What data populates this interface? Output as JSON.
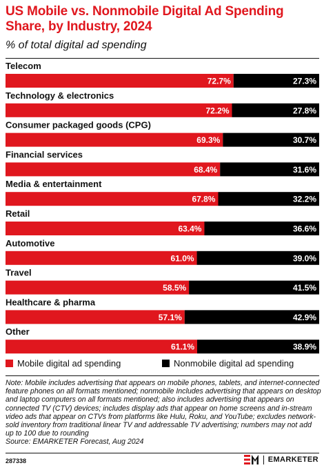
{
  "header": {
    "title": "US Mobile vs. Nonmobile Digital Ad Spending Share, by Industry, 2024",
    "subtitle": "% of total digital ad spending"
  },
  "chart_data": {
    "type": "bar",
    "orientation": "horizontal",
    "stacked": true,
    "categories": [
      "Telecom",
      "Technology & electronics",
      "Consumer packaged goods (CPG)",
      "Financial services",
      "Media & entertainment",
      "Retail",
      "Automotive",
      "Travel",
      "Healthcare & pharma",
      "Other"
    ],
    "series": [
      {
        "name": "Mobile digital ad spending",
        "color": "#e0171e",
        "values": [
          72.7,
          72.2,
          69.3,
          68.4,
          67.8,
          63.4,
          61.0,
          58.5,
          57.1,
          61.1
        ],
        "labels": [
          "72.7%",
          "72.2%",
          "69.3%",
          "68.4%",
          "67.8%",
          "63.4%",
          "61.0%",
          "58.5%",
          "57.1%",
          "61.1%"
        ]
      },
      {
        "name": "Nonmobile digital ad spending",
        "color": "#000000",
        "values": [
          27.3,
          27.8,
          30.7,
          31.6,
          32.2,
          36.6,
          39.0,
          41.5,
          42.9,
          38.9
        ],
        "labels": [
          "27.3%",
          "27.8%",
          "30.7%",
          "31.6%",
          "32.2%",
          "36.6%",
          "39.0%",
          "41.5%",
          "42.9%",
          "38.9%"
        ]
      }
    ],
    "xlim": [
      0,
      100
    ],
    "legend_position": "bottom",
    "grid": false
  },
  "legend": {
    "mobile": "Mobile digital ad spending",
    "nonmobile": "Nonmobile digital ad spending"
  },
  "footer": {
    "note": "Note: Mobile includes advertising that appears on mobile phones, tablets, and internet-connected feature phones on all formats mentioned; nonmobile Includes advertising that appears on desktop and laptop computers on all formats mentioned; also includes advertising that appears on connected TV (CTV) devices; includes display ads that appear on home screens and in-stream video ads that appear on CTVs from platforms like Hulu, Roku, and YouTube; excludes network-sold inventory from traditional linear TV and addressable TV advertising; numbers may not add up to 100 due to rounding",
    "source": "Source: EMARKETER Forecast, Aug 2024",
    "chart_id": "287338",
    "brand": "EMARKETER"
  }
}
